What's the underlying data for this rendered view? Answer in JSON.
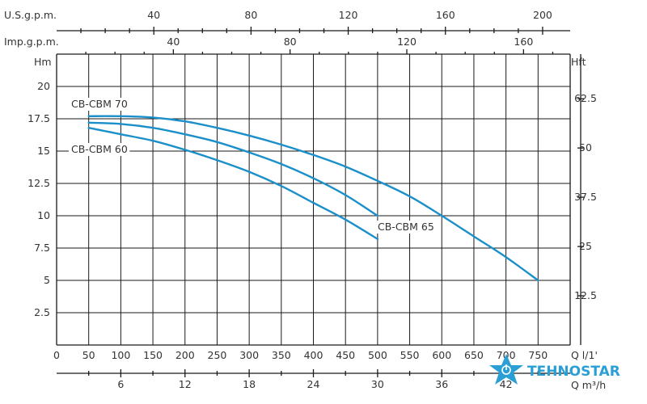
{
  "chart_data": {
    "type": "line",
    "x_axis": {
      "label": "Q l/1'",
      "range": [
        0,
        800
      ],
      "ticks": [
        0,
        50,
        100,
        150,
        200,
        250,
        300,
        350,
        400,
        450,
        500,
        550,
        600,
        650,
        700,
        750
      ]
    },
    "x_axis_m3h": {
      "label": "Q m³/h",
      "ticks": [
        6,
        12,
        18,
        24,
        30,
        36,
        42
      ]
    },
    "x_axis_usgpm": {
      "label": "U.S.g.p.m.",
      "ticks": [
        40,
        80,
        120,
        160,
        200
      ]
    },
    "x_axis_impgpm": {
      "label": "Imp.g.p.m.",
      "ticks": [
        40,
        80,
        120,
        160
      ]
    },
    "y_axis": {
      "label": "Hm",
      "range": [
        0,
        22.5
      ],
      "ticks": [
        2.5,
        5,
        7.5,
        10,
        12.5,
        15,
        17.5,
        20
      ]
    },
    "y_axis_right": {
      "label": "Hft",
      "ticks": [
        12.5,
        25,
        37.5,
        50,
        62.5
      ]
    },
    "grid": true,
    "series": [
      {
        "name": "CB-CBM 70",
        "color": "#1a8fc9",
        "x": [
          50,
          100,
          150,
          200,
          250,
          300,
          350,
          400,
          450,
          500,
          550,
          600,
          650,
          700,
          750
        ],
        "y": [
          17.7,
          17.7,
          17.6,
          17.3,
          16.8,
          16.2,
          15.5,
          14.7,
          13.8,
          12.7,
          11.5,
          10.0,
          8.4,
          6.8,
          5.0
        ]
      },
      {
        "name": "CB-CBM 65",
        "color": "#1a8fc9",
        "x": [
          50,
          100,
          150,
          200,
          250,
          300,
          350,
          400,
          450,
          500
        ],
        "y": [
          17.2,
          17.1,
          16.8,
          16.3,
          15.7,
          14.9,
          14.0,
          12.9,
          11.6,
          10.0
        ]
      },
      {
        "name": "CB-CBM 60",
        "color": "#1a8fc9",
        "x": [
          50,
          100,
          150,
          200,
          250,
          300,
          350,
          400,
          450,
          500
        ],
        "y": [
          16.8,
          16.3,
          15.8,
          15.1,
          14.3,
          13.4,
          12.3,
          11.0,
          9.7,
          8.2
        ]
      }
    ]
  },
  "logo": {
    "text": "TEHNOSTAR",
    "color": "#2a9fd6"
  }
}
